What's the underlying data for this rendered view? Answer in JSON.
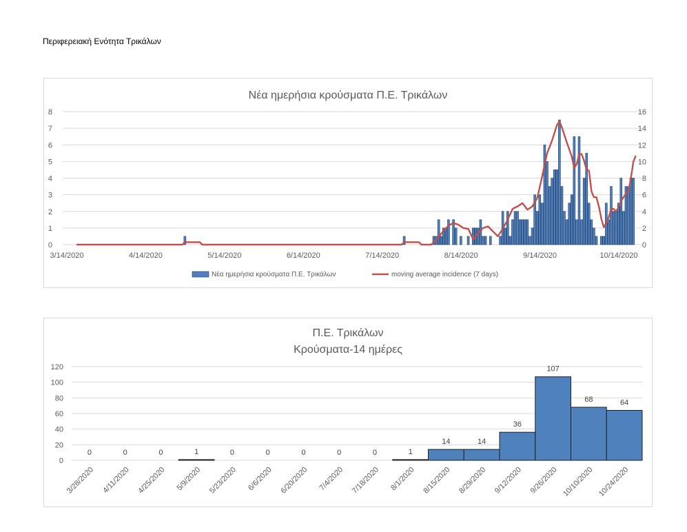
{
  "page": {
    "heading": "Περιφερειακή Ενότητα Τρικάλων"
  },
  "colors": {
    "bar": "#4f81bd",
    "bar_stroke": "#1f3864",
    "line": "#c0504d",
    "grid": "#d9d9d9",
    "text": "#595959"
  },
  "chart_data": [
    {
      "type": "bar+line",
      "title": "Νέα ημερήσια κρούσματα Π.Ε. Τρικάλων",
      "xlim": [
        "2020-03-14",
        "2020-10-24"
      ],
      "ylim_left": [
        0,
        8
      ],
      "ylim_right": [
        0,
        16
      ],
      "left_ticks": [
        "0",
        "1",
        "2",
        "3",
        "4",
        "5",
        "6",
        "7",
        "8"
      ],
      "right_ticks": [
        "0",
        "2",
        "4",
        "6",
        "8",
        "10",
        "12",
        "14",
        "16"
      ],
      "x_ticks": [
        "3/14/2020",
        "4/14/2020",
        "5/14/2020",
        "6/14/2020",
        "7/14/2020",
        "8/14/2020",
        "9/14/2020",
        "10/14/2020"
      ],
      "grid": true,
      "legend_position": "bottom",
      "series": [
        {
          "name": "Νέα ημερήσια κρούσματα Π.Ε. Τρικάλων",
          "kind": "bar",
          "axis": "left",
          "points": [
            [
              "2020-04-27",
              0.5
            ],
            [
              "2020-07-25",
              0.5
            ],
            [
              "2020-08-06",
              0.5
            ],
            [
              "2020-08-07",
              0.5
            ],
            [
              "2020-08-08",
              1.5
            ],
            [
              "2020-08-09",
              0.5
            ],
            [
              "2020-08-10",
              1
            ],
            [
              "2020-08-11",
              1
            ],
            [
              "2020-08-12",
              1.5
            ],
            [
              "2020-08-14",
              1.5
            ],
            [
              "2020-08-15",
              1
            ],
            [
              "2020-08-17",
              0.5
            ],
            [
              "2020-08-20",
              0.5
            ],
            [
              "2020-08-22",
              1
            ],
            [
              "2020-08-23",
              1
            ],
            [
              "2020-08-24",
              1
            ],
            [
              "2020-08-25",
              1.5
            ],
            [
              "2020-08-26",
              0.5
            ],
            [
              "2020-08-27",
              0.5
            ],
            [
              "2020-08-29",
              0.5
            ],
            [
              "2020-09-02",
              0.5
            ],
            [
              "2020-09-03",
              2
            ],
            [
              "2020-09-04",
              1
            ],
            [
              "2020-09-05",
              2
            ],
            [
              "2020-09-06",
              0.5
            ],
            [
              "2020-09-07",
              1.5
            ],
            [
              "2020-09-08",
              2
            ],
            [
              "2020-09-09",
              2
            ],
            [
              "2020-09-10",
              1.5
            ],
            [
              "2020-09-11",
              1.5
            ],
            [
              "2020-09-12",
              1.5
            ],
            [
              "2020-09-13",
              1.5
            ],
            [
              "2020-09-14",
              0.5
            ],
            [
              "2020-09-15",
              1
            ],
            [
              "2020-09-16",
              3
            ],
            [
              "2020-09-17",
              2
            ],
            [
              "2020-09-18",
              3
            ],
            [
              "2020-09-19",
              2.5
            ],
            [
              "2020-09-20",
              6
            ],
            [
              "2020-09-21",
              5
            ],
            [
              "2020-09-22",
              3.5
            ],
            [
              "2020-09-23",
              4
            ],
            [
              "2020-09-24",
              4.5
            ],
            [
              "2020-09-25",
              4.5
            ],
            [
              "2020-09-26",
              7.5
            ],
            [
              "2020-09-27",
              3.5
            ],
            [
              "2020-09-28",
              2
            ],
            [
              "2020-09-29",
              1.5
            ],
            [
              "2020-09-30",
              2.5
            ],
            [
              "2020-10-01",
              3
            ],
            [
              "2020-10-02",
              6.5
            ],
            [
              "2020-10-03",
              1.5
            ],
            [
              "2020-10-04",
              6.5
            ],
            [
              "2020-10-05",
              1.5
            ],
            [
              "2020-10-06",
              4
            ],
            [
              "2020-10-07",
              5.5
            ],
            [
              "2020-10-08",
              2.5
            ],
            [
              "2020-10-09",
              1.5
            ],
            [
              "2020-10-10",
              1
            ],
            [
              "2020-10-11",
              0.5
            ],
            [
              "2020-10-13",
              0.5
            ],
            [
              "2020-10-14",
              0.5
            ],
            [
              "2020-10-15",
              2.5
            ],
            [
              "2020-10-16",
              1.5
            ],
            [
              "2020-10-17",
              3.5
            ],
            [
              "2020-10-18",
              2
            ],
            [
              "2020-10-19",
              2
            ],
            [
              "2020-10-20",
              2.5
            ],
            [
              "2020-10-21",
              4
            ],
            [
              "2020-10-22",
              2
            ],
            [
              "2020-10-23",
              3.5
            ],
            [
              "2020-10-24",
              3.5
            ],
            [
              "2020-10-25",
              4
            ],
            [
              "2020-10-26",
              4
            ]
          ]
        },
        {
          "name": "moving average incidence (7 days)",
          "kind": "line",
          "axis": "right",
          "points": [
            [
              "2020-03-14",
              0
            ],
            [
              "2020-04-26",
              0
            ],
            [
              "2020-04-27",
              0.3
            ],
            [
              "2020-05-03",
              0.3
            ],
            [
              "2020-05-04",
              0
            ],
            [
              "2020-07-24",
              0
            ],
            [
              "2020-07-25",
              0.3
            ],
            [
              "2020-07-31",
              0.3
            ],
            [
              "2020-08-01",
              0
            ],
            [
              "2020-08-05",
              0
            ],
            [
              "2020-08-06",
              0.3
            ],
            [
              "2020-08-08",
              0.9
            ],
            [
              "2020-08-10",
              1.7
            ],
            [
              "2020-08-12",
              2.3
            ],
            [
              "2020-08-14",
              2.6
            ],
            [
              "2020-08-16",
              2.4
            ],
            [
              "2020-08-18",
              2.0
            ],
            [
              "2020-08-20",
              1.9
            ],
            [
              "2020-08-21",
              1.3
            ],
            [
              "2020-08-22",
              0.6
            ],
            [
              "2020-08-24",
              1.4
            ],
            [
              "2020-08-26",
              2.0
            ],
            [
              "2020-08-28",
              2.2
            ],
            [
              "2020-08-30",
              1.6
            ],
            [
              "2020-09-01",
              1.0
            ],
            [
              "2020-09-03",
              1.9
            ],
            [
              "2020-09-05",
              3.0
            ],
            [
              "2020-09-07",
              4.3
            ],
            [
              "2020-09-09",
              4.6
            ],
            [
              "2020-09-11",
              5.0
            ],
            [
              "2020-09-13",
              4.2
            ],
            [
              "2020-09-15",
              4.6
            ],
            [
              "2020-09-17",
              5.6
            ],
            [
              "2020-09-19",
              8.2
            ],
            [
              "2020-09-21",
              11.0
            ],
            [
              "2020-09-23",
              12.5
            ],
            [
              "2020-09-25",
              14.4
            ],
            [
              "2020-09-26",
              14.8
            ],
            [
              "2020-09-27",
              14.1
            ],
            [
              "2020-09-29",
              12.3
            ],
            [
              "2020-10-01",
              10.6
            ],
            [
              "2020-10-02",
              9.2
            ],
            [
              "2020-10-03",
              9.7
            ],
            [
              "2020-10-04",
              10.9
            ],
            [
              "2020-10-05",
              10.9
            ],
            [
              "2020-10-06",
              10.1
            ],
            [
              "2020-10-07",
              9.0
            ],
            [
              "2020-10-08",
              8.9
            ],
            [
              "2020-10-09",
              6.4
            ],
            [
              "2020-10-10",
              5.7
            ],
            [
              "2020-10-11",
              5.7
            ],
            [
              "2020-10-12",
              4.6
            ],
            [
              "2020-10-13",
              3.1
            ],
            [
              "2020-10-14",
              2.1
            ],
            [
              "2020-10-15",
              2.6
            ],
            [
              "2020-10-16",
              3.3
            ],
            [
              "2020-10-17",
              4.3
            ],
            [
              "2020-10-18",
              4.3
            ],
            [
              "2020-10-19",
              4.0
            ],
            [
              "2020-10-20",
              4.5
            ],
            [
              "2020-10-21",
              5.2
            ],
            [
              "2020-10-22",
              5.7
            ],
            [
              "2020-10-23",
              6.1
            ],
            [
              "2020-10-24",
              6.4
            ],
            [
              "2020-10-25",
              8.0
            ],
            [
              "2020-10-26",
              10.0
            ],
            [
              "2020-10-27",
              10.7
            ]
          ]
        }
      ]
    },
    {
      "type": "bar",
      "title": "Π.Ε. Τρικάλων",
      "subtitle": "Κρούσματα-14 ημέρες",
      "ylim": [
        0,
        120
      ],
      "y_ticks": [
        "0",
        "20",
        "40",
        "60",
        "80",
        "100",
        "120"
      ],
      "grid": true,
      "categories": [
        "3/28/2020",
        "4/11/2020",
        "4/25/2020",
        "5/9/2020",
        "5/23/2020",
        "6/6/2020",
        "6/20/2020",
        "7/4/2020",
        "7/18/2020",
        "8/1/2020",
        "8/15/2020",
        "8/29/2020",
        "9/12/2020",
        "9/26/2020",
        "10/10/2020",
        "10/24/2020"
      ],
      "values": [
        0,
        0,
        0,
        1,
        0,
        0,
        0,
        0,
        0,
        1,
        14,
        14,
        36,
        107,
        68,
        64
      ],
      "data_labels": [
        "0",
        "0",
        "0",
        "1",
        "0",
        "0",
        "0",
        "0",
        "0",
        "1",
        "14",
        "14",
        "36",
        "107",
        "68",
        "64"
      ]
    }
  ]
}
